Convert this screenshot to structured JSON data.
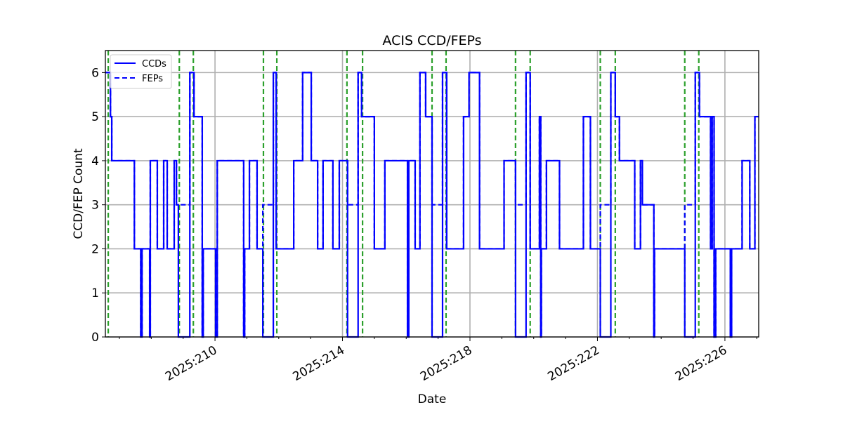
{
  "chart_data": {
    "type": "line",
    "title": "ACIS CCD/FEPs",
    "xlabel": "Date",
    "ylabel": "CCD/FEP Count",
    "xlim": [
      206.56,
      227.06
    ],
    "ylim": [
      0,
      6.5
    ],
    "x_units": "day of year 2025",
    "x_ticks": [
      210,
      214,
      218,
      222,
      226
    ],
    "x_tick_labels": [
      "2025:210",
      "2025:214",
      "2025:218",
      "2025:222",
      "2025:226"
    ],
    "x_minor_tick_step": 1,
    "y_ticks": [
      0,
      1,
      2,
      3,
      4,
      5,
      6
    ],
    "y_tick_labels": [
      "0",
      "1",
      "2",
      "3",
      "4",
      "5",
      "6"
    ],
    "grid": true,
    "legend": {
      "placement": "top-left",
      "entries": [
        "CCDs",
        "FEPs"
      ]
    },
    "colors": {
      "series": "#0000ff",
      "events": "#2ca02c",
      "grid": "#b0b0b0"
    },
    "step_style": "post",
    "series": [
      {
        "name": "CCDs",
        "style": "solid",
        "x": [
          206.56,
          206.72,
          206.76,
          207.47,
          207.67,
          207.71,
          207.95,
          207.97,
          208.19,
          208.39,
          208.5,
          208.72,
          208.79,
          208.85,
          209.21,
          209.34,
          209.6,
          209.63,
          210.02,
          210.07,
          210.9,
          210.93,
          211.08,
          211.32,
          211.5,
          211.83,
          211.92,
          212.47,
          212.75,
          213.02,
          213.22,
          213.39,
          213.7,
          213.9,
          214.16,
          214.49,
          214.6,
          215.0,
          215.33,
          216.04,
          216.08,
          216.28,
          216.43,
          216.61,
          216.81,
          217.14,
          217.27,
          217.8,
          217.97,
          218.3,
          219.07,
          219.43,
          219.76,
          219.89,
          220.18,
          220.22,
          220.24,
          220.4,
          220.81,
          221.56,
          221.78,
          222.09,
          222.42,
          222.56,
          222.69,
          223.17,
          223.35,
          223.41,
          223.77,
          223.79,
          224.74,
          225.07,
          225.2,
          225.55,
          225.6,
          225.66,
          225.71,
          226.17,
          226.21,
          226.54,
          226.78,
          226.94
        ],
        "y": [
          6,
          5,
          4,
          2,
          0,
          2,
          0,
          4,
          2,
          4,
          2,
          4,
          3,
          0,
          6,
          5,
          0,
          2,
          0,
          4,
          0,
          2,
          4,
          2,
          0,
          6,
          2,
          4,
          6,
          4,
          2,
          4,
          2,
          4,
          0,
          6,
          5,
          2,
          4,
          0,
          4,
          2,
          6,
          5,
          0,
          6,
          2,
          5,
          6,
          2,
          4,
          0,
          6,
          2,
          5,
          0,
          2,
          4,
          2,
          5,
          2,
          0,
          6,
          5,
          4,
          2,
          4,
          3,
          0,
          2,
          0,
          6,
          5,
          2,
          5,
          0,
          2,
          0,
          2,
          4,
          2,
          5
        ]
      },
      {
        "name": "FEPs",
        "style": "dashed",
        "same_as": "CCDs",
        "overrides": [
          {
            "start": 208.79,
            "end": 209.21,
            "value": 3
          },
          {
            "start": 211.5,
            "end": 211.83,
            "value": 3
          },
          {
            "start": 214.16,
            "end": 214.49,
            "value": 3
          },
          {
            "start": 216.81,
            "end": 217.14,
            "value": 3
          },
          {
            "start": 219.43,
            "end": 219.76,
            "value": 3
          },
          {
            "start": 222.09,
            "end": 222.42,
            "value": 3
          },
          {
            "start": 224.74,
            "end": 225.07,
            "value": 3
          }
        ]
      }
    ],
    "event_lines": [
      206.65,
      208.88,
      209.32,
      211.52,
      211.94,
      214.14,
      214.63,
      216.81,
      217.25,
      219.43,
      219.89,
      222.09,
      222.56,
      224.74,
      225.18
    ]
  }
}
